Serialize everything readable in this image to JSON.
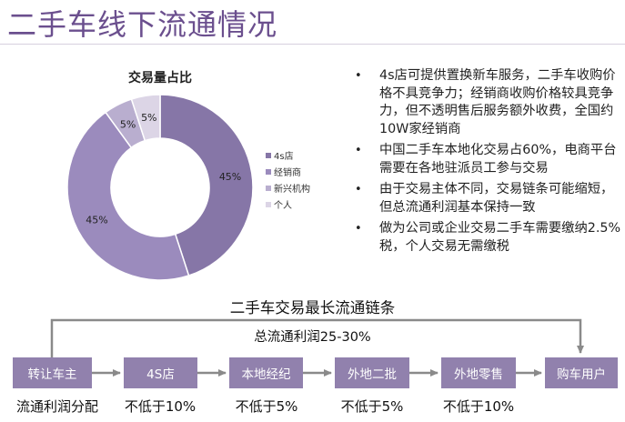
{
  "page": {
    "title": "二手车线下流通情况"
  },
  "chart_data": {
    "type": "pie",
    "title": "交易量占比",
    "categories": [
      "4s店",
      "经销商",
      "新兴机构",
      "个人"
    ],
    "values": [
      45,
      45,
      5,
      5
    ],
    "labels": [
      "45%",
      "45%",
      "5%",
      "5%"
    ],
    "colors": [
      "#8676a7",
      "#9b8bbd",
      "#b9aecf",
      "#dcd5e6"
    ],
    "legend": "right"
  },
  "bullets": [
    "4s店可提供置换新车服务，二手车收购价格不具竞争力；经销商收购价格较具竞争力，但不透明售后服务额外收费，全国约10W家经销商",
    "中国二手车本地化交易占60%，电商平台需要在各地驻派员工参与交易",
    "由于交易主体不同，交易链条可能缩短，但总流通利润基本保持一致",
    "做为公司或企业交易二手车需要缴纳2.5%税，个人交易无需缴税"
  ],
  "chain": {
    "title": "二手车交易最长流通链条",
    "profit_label": "总流通利润25-30%",
    "nodes": [
      "转让车主",
      "4S店",
      "本地经纪",
      "外地二批",
      "外地零售",
      "购车用户"
    ],
    "share_caption": "流通利润分配",
    "shares": [
      "不低于10%",
      "不低于5%",
      "不低于5%",
      "不低于10%"
    ]
  },
  "colors": {
    "accent": "#6b4f8e",
    "node": "#9181ad",
    "arrow": "#8a8a8a"
  }
}
